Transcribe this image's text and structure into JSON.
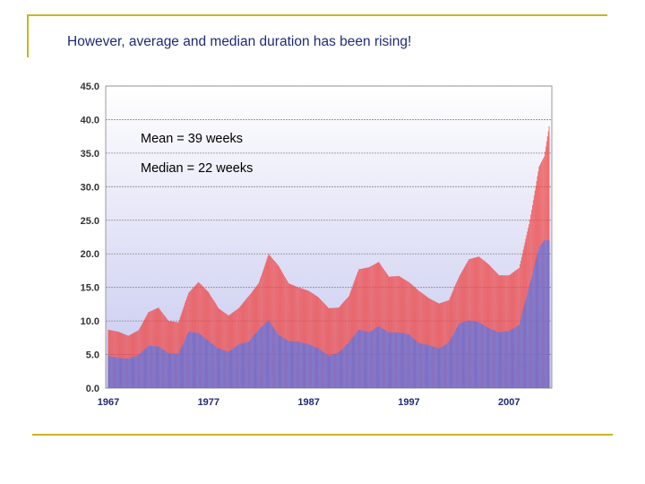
{
  "slide": {
    "title": "However, average and median duration has been rising!"
  },
  "colors": {
    "mean": "#ee4848",
    "median": "#6470d8",
    "rule": "#c9b421",
    "title": "#1f2a78"
  },
  "chart_data": {
    "type": "bar",
    "title": "",
    "xlabel": "",
    "ylabel": "",
    "ylim": [
      0,
      45
    ],
    "yticks": [
      "0.0",
      "5.0",
      "10.0",
      "15.0",
      "20.0",
      "25.0",
      "30.0",
      "35.0",
      "40.0",
      "45.0"
    ],
    "xlim": [
      1967,
      2011
    ],
    "xticks": [
      "1967",
      "1977",
      "1987",
      "1997",
      "2007"
    ],
    "grid": true,
    "annotations": [
      "Mean = 39 weeks",
      "Median = 22 weeks"
    ],
    "series": [
      {
        "x": [
          1967,
          1968,
          1969,
          1970,
          1971,
          1972,
          1973,
          1974,
          1975,
          1976,
          1977,
          1978,
          1979,
          1980,
          1981,
          1982,
          1983,
          1984,
          1985,
          1986,
          1987,
          1988,
          1989,
          1990,
          1991,
          1992,
          1993,
          1994,
          1995,
          1996,
          1997,
          1998,
          1999,
          2000,
          2001,
          2002,
          2003,
          2004,
          2005,
          2006,
          2007,
          2008,
          2009,
          2010,
          2010.5,
          2011
        ],
        "values": [
          8.7,
          8.4,
          7.8,
          8.6,
          11.3,
          12.0,
          10.0,
          9.8,
          14.2,
          15.8,
          14.3,
          11.9,
          10.8,
          11.9,
          13.7,
          15.6,
          20.0,
          18.2,
          15.6,
          15.0,
          14.5,
          13.5,
          11.9,
          12.0,
          13.7,
          17.7,
          18.0,
          18.8,
          16.6,
          16.7,
          15.8,
          14.5,
          13.4,
          12.6,
          13.1,
          16.6,
          19.2,
          19.6,
          18.4,
          16.8,
          16.8,
          17.9,
          24.4,
          33.0,
          34.5,
          39.0
        ]
      },
      {
        "x": [
          1967,
          1968,
          1969,
          1970,
          1971,
          1972,
          1973,
          1974,
          1975,
          1976,
          1977,
          1978,
          1979,
          1980,
          1981,
          1982,
          1983,
          1984,
          1985,
          1986,
          1987,
          1988,
          1989,
          1990,
          1991,
          1992,
          1993,
          1994,
          1995,
          1996,
          1997,
          1998,
          1999,
          2000,
          2001,
          2002,
          2003,
          2004,
          2005,
          2006,
          2007,
          2008,
          2009,
          2010,
          2010.5,
          2011
        ],
        "values": [
          4.8,
          4.5,
          4.4,
          4.9,
          6.3,
          6.2,
          5.2,
          5.1,
          8.4,
          8.2,
          7.0,
          5.9,
          5.4,
          6.5,
          6.9,
          8.7,
          10.1,
          7.9,
          7.0,
          6.9,
          6.5,
          5.9,
          4.8,
          5.3,
          6.8,
          8.7,
          8.3,
          9.2,
          8.3,
          8.3,
          8.0,
          6.7,
          6.4,
          5.9,
          6.8,
          9.6,
          10.1,
          9.8,
          8.9,
          8.3,
          8.5,
          9.4,
          15.1,
          21.0,
          22.0,
          22.0
        ]
      }
    ]
  }
}
